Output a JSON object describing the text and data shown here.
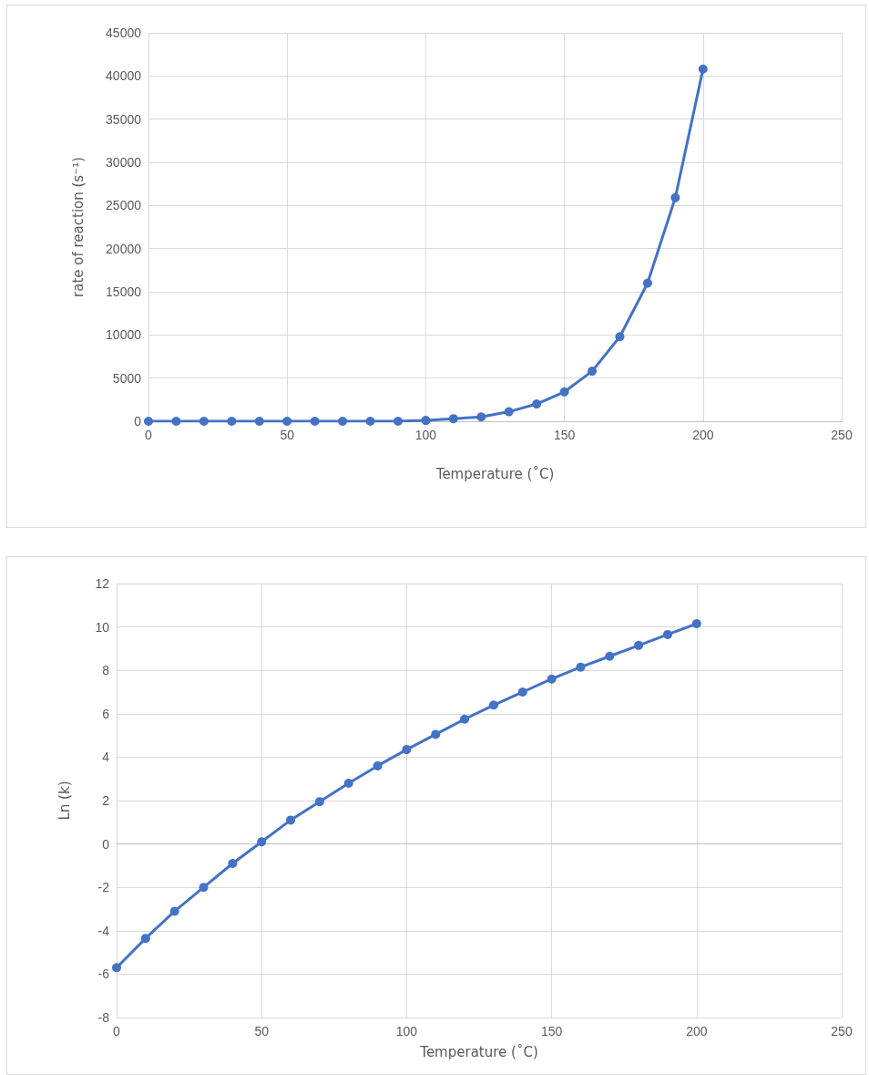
{
  "chart_data": [
    {
      "type": "line",
      "xlabel": "Temperature (˚C)",
      "ylabel": "rate of reaction (s⁻¹)",
      "x": [
        0,
        10,
        20,
        30,
        40,
        50,
        60,
        70,
        80,
        90,
        100,
        110,
        120,
        130,
        140,
        150,
        160,
        170,
        180,
        190,
        200
      ],
      "series": [
        {
          "color": "#4472c4",
          "values": [
            0,
            0,
            0,
            0,
            0,
            0,
            0,
            0,
            0,
            0,
            100,
            300,
            500,
            1100,
            2000,
            3400,
            5800,
            9800,
            16000,
            25900,
            40800
          ]
        }
      ],
      "xlim": [
        0,
        250
      ],
      "xticks": [
        0,
        50,
        100,
        150,
        200,
        250
      ],
      "ylim": [
        0,
        45000
      ],
      "yticks": [
        0,
        5000,
        10000,
        15000,
        20000,
        25000,
        30000,
        35000,
        40000,
        45000
      ],
      "grid": true,
      "marker": "circle",
      "line_style": "solid"
    },
    {
      "type": "line",
      "xlabel": "Temperature (˚C)",
      "ylabel": "Ln (k)",
      "x": [
        0,
        10,
        20,
        30,
        40,
        50,
        60,
        70,
        80,
        90,
        100,
        110,
        120,
        130,
        140,
        150,
        160,
        170,
        180,
        190,
        200
      ],
      "series": [
        {
          "color": "#4472c4",
          "values": [
            -5.7,
            -4.35,
            -3.1,
            -2.0,
            -0.9,
            0.1,
            1.1,
            1.95,
            2.8,
            3.6,
            4.35,
            5.05,
            5.75,
            6.4,
            7.0,
            7.6,
            8.15,
            8.65,
            9.15,
            9.65,
            10.15
          ]
        }
      ],
      "xlim": [
        0,
        250
      ],
      "xticks": [
        0,
        50,
        100,
        150,
        200,
        250
      ],
      "ylim": [
        -8,
        12
      ],
      "yticks": [
        -8,
        -6,
        -4,
        -2,
        0,
        2,
        4,
        6,
        8,
        10,
        12
      ],
      "grid": true,
      "marker": "circle",
      "line_style": "solid"
    }
  ]
}
